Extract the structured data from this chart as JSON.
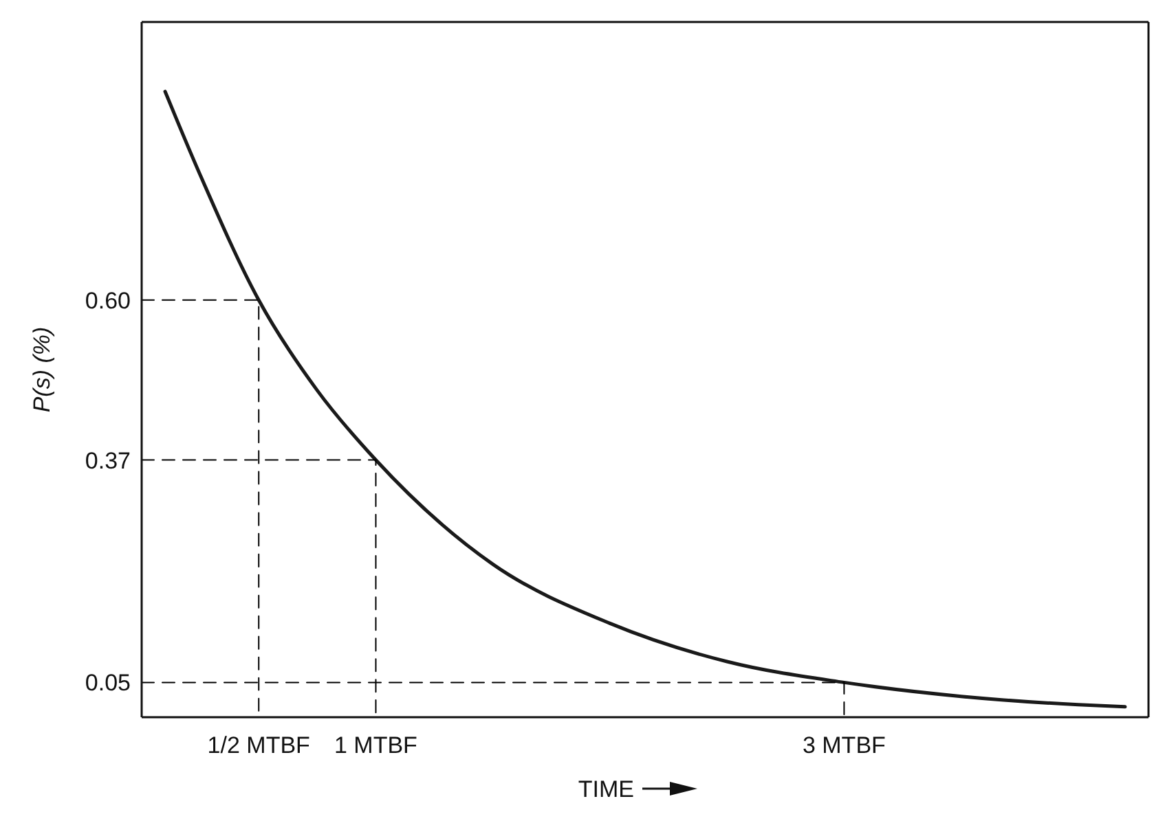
{
  "chart_data": {
    "type": "line",
    "xlabel": "TIME",
    "ylabel": "P(s) (%)",
    "xlim": [
      0,
      4.3
    ],
    "ylim": [
      0,
      1
    ],
    "xticks": [
      {
        "value": 0.5,
        "label": "1/2 MTBF"
      },
      {
        "value": 1,
        "label": "1 MTBF"
      },
      {
        "value": 3,
        "label": "3 MTBF"
      }
    ],
    "yticks": [
      0.05,
      0.37,
      {
        "value": 0.6,
        "label": "0.60"
      }
    ],
    "marker": "none",
    "series": [
      {
        "color": "#1a1a1a",
        "line_style": "solid",
        "x": [
          0.1,
          0.25,
          0.5,
          0.75,
          1,
          1.5,
          2,
          2.5,
          3,
          3.5,
          4,
          4.2
        ],
        "values": [
          0.9,
          0.78,
          0.6,
          0.47,
          0.37,
          0.22,
          0.135,
          0.08,
          0.05,
          0.03,
          0.018,
          0.015
        ]
      },
      {
        "color": "#000000",
        "line_style": "dashed",
        "x": [
          0,
          0.5,
          0.5
        ],
        "values": [
          0.6,
          0.6,
          0
        ]
      },
      {
        "color": "#000000",
        "line_style": "dashed",
        "x": [
          0,
          1,
          1
        ],
        "values": [
          0.37,
          0.37,
          0
        ]
      },
      {
        "color": "#000000",
        "line_style": "dashed",
        "x": [
          0,
          3,
          3
        ],
        "values": [
          0.05,
          0.05,
          0
        ]
      }
    ]
  }
}
